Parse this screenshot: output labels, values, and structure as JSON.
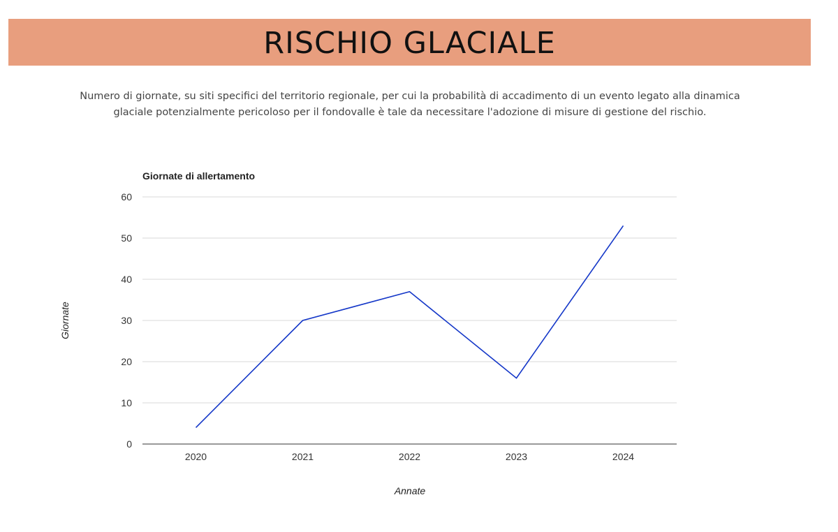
{
  "header": {
    "title": "RISCHIO GLACIALE",
    "background_color": "#e89e7e"
  },
  "description": "Numero di giornate, su siti specifici del territorio regionale, per cui la probabilità di accadimento di un evento legato alla dinamica glaciale potenzialmente pericoloso per il fondovalle è tale da necessitare l'adozione di misure di gestione del rischio.",
  "chart_data": {
    "type": "line",
    "title": "Giornate di allertamento",
    "xlabel": "Annate",
    "ylabel": "Giornate",
    "categories": [
      "2020",
      "2021",
      "2022",
      "2023",
      "2024"
    ],
    "series": [
      {
        "values": [
          4,
          30,
          37,
          16,
          53
        ],
        "color": "#1437c8"
      }
    ],
    "ylim": [
      0,
      60
    ],
    "yticks": [
      "0",
      "10",
      "20",
      "30",
      "40",
      "50",
      "60"
    ],
    "grid": true,
    "legend": "none"
  }
}
